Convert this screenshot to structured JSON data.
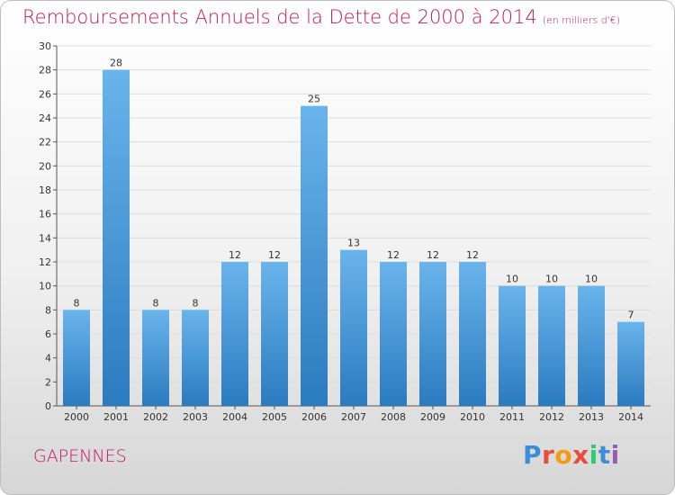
{
  "header": {
    "title": "Remboursements Annuels de la Dette de 2000 à 2014",
    "unit": "(en milliers d'€)"
  },
  "footer": {
    "commune": "GAPENNES",
    "logo_text": "Proxiti",
    "logo_colors": [
      "#3b8fd8",
      "#e74c3c",
      "#f39c12",
      "#e74c3c",
      "#2ecc71",
      "#3b8fd8",
      "#9b59b6"
    ]
  },
  "colors": {
    "bar_top": "#6ab4ec",
    "bar_bottom": "#2a7bbf",
    "title": "#c2185b",
    "grid": "#dddddd"
  },
  "chart_data": {
    "type": "bar",
    "title": "Remboursements Annuels de la Dette de 2000 à 2014",
    "subtitle": "(en milliers d'€)",
    "categories": [
      "2000",
      "2001",
      "2002",
      "2003",
      "2004",
      "2005",
      "2006",
      "2007",
      "2008",
      "2009",
      "2010",
      "2011",
      "2012",
      "2013",
      "2014"
    ],
    "values": [
      8,
      28,
      8,
      8,
      12,
      12,
      25,
      13,
      12,
      12,
      12,
      10,
      10,
      10,
      7
    ],
    "ylim": [
      0,
      30
    ],
    "yticks": [
      0,
      2,
      4,
      6,
      8,
      10,
      12,
      14,
      16,
      18,
      20,
      22,
      24,
      26,
      28,
      30
    ],
    "grid": true,
    "xlabel": "",
    "ylabel": ""
  }
}
